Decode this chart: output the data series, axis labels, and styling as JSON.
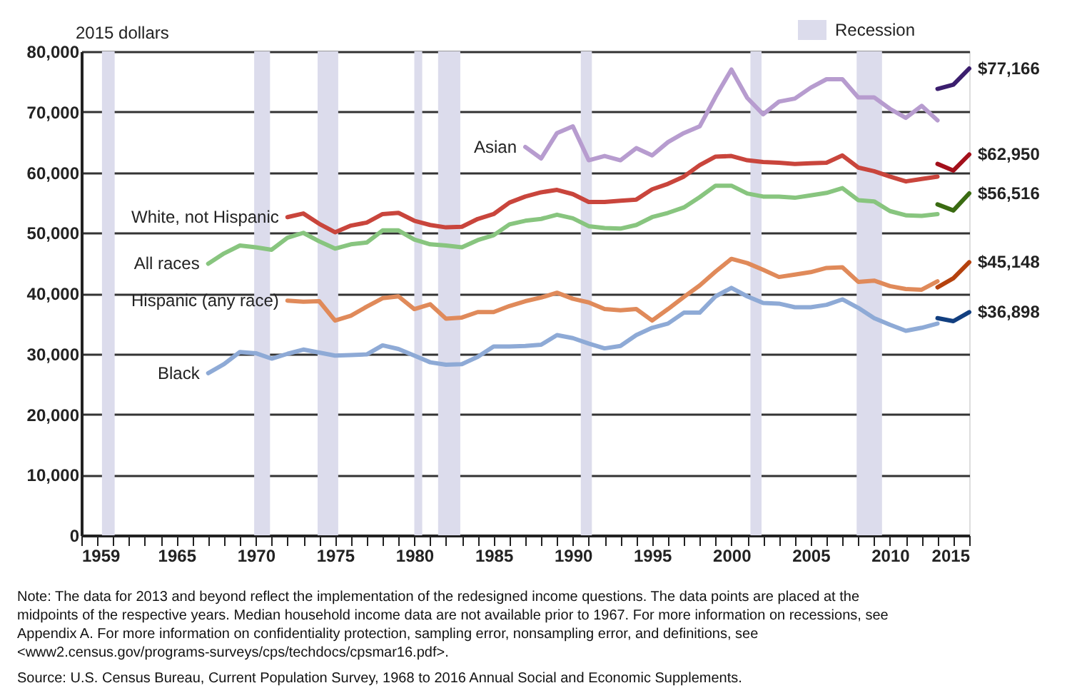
{
  "chart_data": {
    "type": "line",
    "ylabel": "2015 dollars",
    "xlim": [
      1959,
      2015
    ],
    "xticks": [
      1959,
      {
        "value": 1960,
        "label": null
      },
      {
        "value": 1961,
        "label": null
      },
      {
        "value": 1962,
        "label": null
      },
      {
        "value": 1963,
        "label": null
      },
      {
        "value": 1964,
        "label": null
      },
      1965,
      {
        "value": 1966,
        "label": null
      },
      {
        "value": 1967,
        "label": null
      },
      {
        "value": 1968,
        "label": null
      },
      {
        "value": 1969,
        "label": null
      },
      1970,
      {
        "value": 1971,
        "label": null
      },
      {
        "value": 1972,
        "label": null
      },
      {
        "value": 1973,
        "label": null
      },
      {
        "value": 1974,
        "label": null
      },
      1975,
      {
        "value": 1976,
        "label": null
      },
      {
        "value": 1977,
        "label": null
      },
      {
        "value": 1978,
        "label": null
      },
      {
        "value": 1979,
        "label": null
      },
      1980,
      {
        "value": 1981,
        "label": null
      },
      {
        "value": 1982,
        "label": null
      },
      {
        "value": 1983,
        "label": null
      },
      {
        "value": 1984,
        "label": null
      },
      1985,
      {
        "value": 1986,
        "label": null
      },
      {
        "value": 1987,
        "label": null
      },
      {
        "value": 1988,
        "label": null
      },
      {
        "value": 1989,
        "label": null
      },
      1990,
      {
        "value": 1991,
        "label": null
      },
      {
        "value": 1992,
        "label": null
      },
      {
        "value": 1993,
        "label": null
      },
      {
        "value": 1994,
        "label": null
      },
      1995,
      {
        "value": 1996,
        "label": null
      },
      {
        "value": 1997,
        "label": null
      },
      {
        "value": 1998,
        "label": null
      },
      {
        "value": 1999,
        "label": null
      },
      2000,
      {
        "value": 2001,
        "label": null
      },
      {
        "value": 2002,
        "label": null
      },
      {
        "value": 2003,
        "label": null
      },
      {
        "value": 2004,
        "label": null
      },
      2005,
      {
        "value": 2006,
        "label": null
      },
      {
        "value": 2007,
        "label": null
      },
      {
        "value": 2008,
        "label": null
      },
      {
        "value": 2009,
        "label": null
      },
      2010,
      {
        "value": 2011,
        "label": null
      },
      {
        "value": 2012,
        "label": null
      },
      {
        "value": 2013,
        "label": null
      },
      {
        "value": 2014,
        "label": null
      },
      2015
    ],
    "ylim": [
      0,
      80000
    ],
    "yticks": [
      0,
      {
        "value": 10000,
        "label": "10,000"
      },
      {
        "value": 20000,
        "label": "20,000"
      },
      {
        "value": 30000,
        "label": "30,000"
      },
      {
        "value": 40000,
        "label": "40,000"
      },
      {
        "value": 50000,
        "label": "50,000"
      },
      {
        "value": 60000,
        "label": "60,000"
      },
      {
        "value": 70000,
        "label": "70,000"
      },
      {
        "value": 80000,
        "label": "80,000"
      }
    ],
    "grid": "y",
    "legend": "top right",
    "line_style": "solid",
    "marker": "none",
    "series": [
      {
        "name": "Asian",
        "color": "#b79ccf",
        "x": [
          1987,
          1988,
          1989,
          1990,
          1991,
          1992,
          1993,
          1994,
          1995,
          1996,
          1997,
          1998,
          1999,
          2000,
          2001,
          2002,
          2003,
          2004,
          2005,
          2006,
          2007,
          2008,
          2009,
          2010,
          2011,
          2012,
          2013
        ],
        "values": [
          64200,
          62300,
          66500,
          67600,
          62000,
          62700,
          62000,
          64000,
          62800,
          65000,
          66500,
          67600,
          72500,
          77000,
          72300,
          69600,
          71700,
          72200,
          74000,
          75400,
          75400,
          72400,
          72400,
          70500,
          69000,
          71000,
          68600
        ]
      },
      {
        "color": "#3b1e6e",
        "x": [
          2013,
          2014,
          2015
        ],
        "values": [
          73800,
          74500,
          77166
        ],
        "value_labels": [
          null,
          null,
          "$77,166"
        ]
      },
      {
        "name": "White, not Hispanic",
        "color": "#c9453c",
        "x": [
          1972,
          1973,
          1974,
          1975,
          1976,
          1977,
          1978,
          1979,
          1980,
          1981,
          1982,
          1983,
          1984,
          1985,
          1986,
          1987,
          1988,
          1989,
          1990,
          1991,
          1992,
          1993,
          1994,
          1995,
          1996,
          1997,
          1998,
          1999,
          2000,
          2001,
          2002,
          2003,
          2004,
          2005,
          2006,
          2007,
          2008,
          2009,
          2010,
          2011,
          2012,
          2013
        ],
        "values": [
          52600,
          53200,
          51500,
          50100,
          51200,
          51700,
          53100,
          53300,
          52000,
          51300,
          50900,
          51000,
          52300,
          53100,
          55000,
          56000,
          56700,
          57100,
          56400,
          55100,
          55100,
          55300,
          55500,
          57200,
          58100,
          59300,
          61200,
          62600,
          62700,
          62000,
          61700,
          61600,
          61400,
          61500,
          61600,
          62800,
          60800,
          60200,
          59300,
          58500,
          58900,
          59300
        ]
      },
      {
        "color": "#a3101b",
        "x": [
          2013,
          2014,
          2015
        ],
        "values": [
          61400,
          60300,
          62950
        ],
        "value_labels": [
          null,
          null,
          "$62,950"
        ]
      },
      {
        "name": "All races",
        "color": "#88c57f",
        "x": [
          1967,
          1968,
          1969,
          1970,
          1971,
          1972,
          1973,
          1974,
          1975,
          1976,
          1977,
          1978,
          1979,
          1980,
          1981,
          1982,
          1983,
          1984,
          1985,
          1986,
          1987,
          1988,
          1989,
          1990,
          1991,
          1992,
          1993,
          1994,
          1995,
          1996,
          1997,
          1998,
          1999,
          2000,
          2001,
          2002,
          2003,
          2004,
          2005,
          2006,
          2007,
          2008,
          2009,
          2010,
          2011,
          2012,
          2013
        ],
        "values": [
          44900,
          46600,
          47900,
          47600,
          47200,
          49200,
          50000,
          48600,
          47400,
          48100,
          48400,
          50400,
          50400,
          48900,
          48100,
          47900,
          47600,
          48800,
          49600,
          51400,
          52000,
          52300,
          53000,
          52400,
          51100,
          50800,
          50700,
          51300,
          52600,
          53300,
          54200,
          55900,
          57800,
          57800,
          56500,
          56000,
          56000,
          55800,
          56200,
          56600,
          57400,
          55400,
          55200,
          53600,
          52900,
          52800,
          53100
        ]
      },
      {
        "color": "#3a6b12",
        "x": [
          2013,
          2014,
          2015
        ],
        "values": [
          54700,
          53700,
          56516
        ],
        "value_labels": [
          null,
          null,
          "$56,516"
        ]
      },
      {
        "name": "Hispanic (any race)",
        "color": "#e08a5a",
        "x": [
          1972,
          1973,
          1974,
          1975,
          1976,
          1977,
          1978,
          1979,
          1980,
          1981,
          1982,
          1983,
          1984,
          1985,
          1986,
          1987,
          1988,
          1989,
          1990,
          1991,
          1992,
          1993,
          1994,
          1995,
          1996,
          1997,
          1998,
          1999,
          2000,
          2001,
          2002,
          2003,
          2004,
          2005,
          2006,
          2007,
          2008,
          2009,
          2010,
          2011,
          2012,
          2013
        ],
        "values": [
          38800,
          38600,
          38700,
          35500,
          36300,
          37800,
          39200,
          39500,
          37400,
          38200,
          35800,
          36000,
          36900,
          36900,
          37900,
          38700,
          39300,
          40100,
          39100,
          38500,
          37400,
          37200,
          37400,
          35500,
          37400,
          39400,
          41300,
          43600,
          45700,
          45000,
          43900,
          42700,
          43100,
          43500,
          44200,
          44300,
          41900,
          42100,
          41200,
          40700,
          40600,
          42000
        ]
      },
      {
        "color": "#b5420e",
        "x": [
          2013,
          2014,
          2015
        ],
        "values": [
          41000,
          42500,
          45148
        ],
        "value_labels": [
          null,
          null,
          "$45,148"
        ]
      },
      {
        "name": "Black",
        "color": "#8eaad6",
        "x": [
          1967,
          1968,
          1969,
          1970,
          1971,
          1972,
          1973,
          1974,
          1975,
          1976,
          1977,
          1978,
          1979,
          1980,
          1981,
          1982,
          1983,
          1984,
          1985,
          1986,
          1987,
          1988,
          1989,
          1990,
          1991,
          1992,
          1993,
          1994,
          1995,
          1996,
          1997,
          1998,
          1999,
          2000,
          2001,
          2002,
          2003,
          2004,
          2005,
          2006,
          2007,
          2008,
          2009,
          2010,
          2011,
          2012,
          2013
        ],
        "values": [
          26800,
          28300,
          30300,
          30100,
          29200,
          30000,
          30700,
          30200,
          29700,
          29800,
          29900,
          31400,
          30800,
          29700,
          28600,
          28200,
          28300,
          29500,
          31200,
          31200,
          31300,
          31500,
          33100,
          32600,
          31700,
          30900,
          31300,
          33100,
          34300,
          35000,
          36800,
          36800,
          39500,
          40900,
          39500,
          38400,
          38300,
          37700,
          37700,
          38100,
          39000,
          37600,
          35900,
          34800,
          33800,
          34300,
          35000
        ]
      },
      {
        "color": "#123f80",
        "x": [
          2013,
          2014,
          2015
        ],
        "values": [
          35900,
          35400,
          36898
        ],
        "value_labels": [
          null,
          null,
          "$36,898"
        ]
      }
    ],
    "bands": [
      {
        "axis": "x",
        "from": 1960.3,
        "to": 1961.1,
        "label": "Recession",
        "color": "#dcdcec"
      },
      {
        "axis": "x",
        "from": 1969.9,
        "to": 1970.9,
        "color": "#dcdcec"
      },
      {
        "axis": "x",
        "from": 1973.9,
        "to": 1975.2,
        "color": "#dcdcec"
      },
      {
        "axis": "x",
        "from": 1980.0,
        "to": 1980.5,
        "color": "#dcdcec"
      },
      {
        "axis": "x",
        "from": 1981.5,
        "to": 1982.9,
        "color": "#dcdcec"
      },
      {
        "axis": "x",
        "from": 1990.5,
        "to": 1991.2,
        "color": "#dcdcec"
      },
      {
        "axis": "x",
        "from": 2001.2,
        "to": 2001.9,
        "color": "#dcdcec"
      },
      {
        "axis": "x",
        "from": 2007.9,
        "to": 2009.5,
        "color": "#dcdcec"
      }
    ],
    "annotations": [
      "Note: The data for 2013 and beyond reflect the implementation of the redesigned income questions. The data points are placed at the midpoints of the respective years. Median household income data are not available prior to 1967. For more information on recessions, see Appendix A. For more information on confidentiality protection, sampling error, nonsampling error, and definitions, see <www2.census.gov/programs-surveys/cps/techdocs/cpsmar16.pdf>.",
      "Source: U.S. Census Bureau, Current Population Survey, 1968 to 2016 Annual Social and Economic Supplements."
    ]
  }
}
